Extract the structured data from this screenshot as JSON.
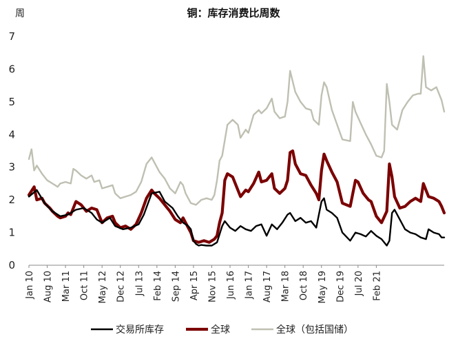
{
  "chart_data": {
    "type": "line",
    "title": "铜：库存消费比周数",
    "ylabel": "周",
    "xlabel": "",
    "ylim": [
      0,
      7
    ],
    "yticks": [
      0,
      1,
      2,
      3,
      4,
      5,
      6,
      7
    ],
    "x_start": "2010-01",
    "x_end": "2021-12",
    "categories": [
      "Jan 10",
      "Aug 10",
      "Mar 11",
      "Oct 11",
      "May 12",
      "Dec 12",
      "Jul 13",
      "Feb 14",
      "Sep 14",
      "Apr 15",
      "Nov 15",
      "Jun 16",
      "Jan 17",
      "Aug 17",
      "Mar 18",
      "Oct 18",
      "May 19",
      "Dec 19",
      "Jul 20",
      "Feb 21"
    ],
    "series": [
      {
        "name": "交易所库存",
        "color": "#000000",
        "points": [
          [
            0,
            2.1
          ],
          [
            3,
            2.3
          ],
          [
            6,
            1.9
          ],
          [
            9,
            1.65
          ],
          [
            12,
            1.5
          ],
          [
            15,
            1.55
          ],
          [
            18,
            1.7
          ],
          [
            21,
            1.75
          ],
          [
            24,
            1.6
          ],
          [
            26,
            1.4
          ],
          [
            28,
            1.3
          ],
          [
            31,
            1.45
          ],
          [
            33,
            1.2
          ],
          [
            36,
            1.1
          ],
          [
            39,
            1.15
          ],
          [
            42,
            1.25
          ],
          [
            44,
            1.55
          ],
          [
            47,
            2.2
          ],
          [
            50,
            2.25
          ],
          [
            52,
            1.95
          ],
          [
            55,
            1.75
          ],
          [
            57,
            1.5
          ],
          [
            59,
            1.3
          ],
          [
            61,
            1.2
          ],
          [
            62,
            1.1
          ],
          [
            63,
            0.75
          ],
          [
            64,
            0.65
          ],
          [
            65,
            0.6
          ],
          [
            66,
            0.62
          ],
          [
            68,
            0.6
          ],
          [
            70,
            0.6
          ],
          [
            72,
            0.7
          ],
          [
            74,
            1.2
          ],
          [
            75,
            1.35
          ],
          [
            77,
            1.15
          ],
          [
            79,
            1.05
          ],
          [
            81,
            1.2
          ],
          [
            83,
            1.1
          ],
          [
            85,
            1.05
          ],
          [
            87,
            1.2
          ],
          [
            89,
            1.25
          ],
          [
            91,
            0.9
          ],
          [
            93,
            1.25
          ],
          [
            95,
            1.1
          ],
          [
            97,
            1.3
          ],
          [
            99,
            1.55
          ],
          [
            100,
            1.6
          ],
          [
            102,
            1.35
          ],
          [
            104,
            1.45
          ],
          [
            106,
            1.3
          ],
          [
            108,
            1.35
          ],
          [
            110,
            1.15
          ],
          [
            112,
            1.95
          ],
          [
            113,
            2.05
          ],
          [
            114,
            1.7
          ],
          [
            116,
            1.6
          ],
          [
            118,
            1.45
          ],
          [
            120,
            1.0
          ],
          [
            123,
            0.75
          ],
          [
            125,
            1.0
          ],
          [
            127,
            0.95
          ],
          [
            129,
            0.88
          ],
          [
            131,
            1.05
          ],
          [
            133,
            0.9
          ],
          [
            135,
            0.8
          ],
          [
            137,
            0.6
          ],
          [
            138,
            0.75
          ],
          [
            139,
            1.6
          ],
          [
            140,
            1.7
          ],
          [
            142,
            1.4
          ],
          [
            144,
            1.1
          ],
          [
            146,
            1.0
          ],
          [
            148,
            0.95
          ],
          [
            150,
            0.85
          ],
          [
            152,
            0.8
          ],
          [
            153,
            1.1
          ],
          [
            155,
            1.0
          ],
          [
            157,
            0.95
          ],
          [
            158,
            0.85
          ],
          [
            159,
            0.85
          ]
        ]
      },
      {
        "name": "全球",
        "color": "#7B0000",
        "points": [
          [
            0,
            2.15
          ],
          [
            2,
            2.4
          ],
          [
            3,
            2.0
          ],
          [
            5,
            2.05
          ],
          [
            6,
            1.9
          ],
          [
            8,
            1.75
          ],
          [
            9,
            1.65
          ],
          [
            11,
            1.5
          ],
          [
            12,
            1.45
          ],
          [
            14,
            1.5
          ],
          [
            15,
            1.6
          ],
          [
            16,
            1.55
          ],
          [
            18,
            1.95
          ],
          [
            20,
            1.85
          ],
          [
            22,
            1.65
          ],
          [
            24,
            1.75
          ],
          [
            26,
            1.7
          ],
          [
            28,
            1.3
          ],
          [
            30,
            1.45
          ],
          [
            32,
            1.5
          ],
          [
            33,
            1.3
          ],
          [
            35,
            1.15
          ],
          [
            37,
            1.2
          ],
          [
            39,
            1.1
          ],
          [
            41,
            1.25
          ],
          [
            43,
            1.6
          ],
          [
            45,
            2.05
          ],
          [
            47,
            2.3
          ],
          [
            48,
            2.2
          ],
          [
            50,
            2.05
          ],
          [
            52,
            1.85
          ],
          [
            54,
            1.65
          ],
          [
            56,
            1.4
          ],
          [
            58,
            1.3
          ],
          [
            59,
            1.45
          ],
          [
            60,
            1.3
          ],
          [
            62,
            1.0
          ],
          [
            63,
            0.75
          ],
          [
            65,
            0.7
          ],
          [
            67,
            0.75
          ],
          [
            69,
            0.7
          ],
          [
            71,
            0.8
          ],
          [
            72,
            0.9
          ],
          [
            73,
            1.3
          ],
          [
            74,
            1.6
          ],
          [
            75,
            2.6
          ],
          [
            76,
            2.8
          ],
          [
            78,
            2.7
          ],
          [
            80,
            2.3
          ],
          [
            81,
            2.1
          ],
          [
            83,
            2.3
          ],
          [
            84,
            2.25
          ],
          [
            86,
            2.5
          ],
          [
            88,
            2.85
          ],
          [
            89,
            2.55
          ],
          [
            91,
            2.6
          ],
          [
            93,
            2.8
          ],
          [
            94,
            2.35
          ],
          [
            96,
            2.2
          ],
          [
            98,
            2.35
          ],
          [
            99,
            2.6
          ],
          [
            100,
            3.45
          ],
          [
            101,
            3.5
          ],
          [
            102,
            3.1
          ],
          [
            104,
            2.8
          ],
          [
            106,
            2.75
          ],
          [
            108,
            2.45
          ],
          [
            110,
            2.2
          ],
          [
            111,
            2.0
          ],
          [
            112,
            2.9
          ],
          [
            113,
            3.4
          ],
          [
            114,
            3.2
          ],
          [
            116,
            2.85
          ],
          [
            118,
            2.55
          ],
          [
            120,
            1.9
          ],
          [
            123,
            1.8
          ],
          [
            125,
            2.6
          ],
          [
            126,
            2.55
          ],
          [
            128,
            2.2
          ],
          [
            130,
            2.0
          ],
          [
            131,
            1.95
          ],
          [
            133,
            1.5
          ],
          [
            135,
            1.3
          ],
          [
            137,
            1.65
          ],
          [
            138,
            3.1
          ],
          [
            139,
            2.7
          ],
          [
            140,
            2.1
          ],
          [
            142,
            1.75
          ],
          [
            144,
            1.8
          ],
          [
            146,
            1.95
          ],
          [
            148,
            2.05
          ],
          [
            150,
            1.95
          ],
          [
            151,
            2.5
          ],
          [
            153,
            2.1
          ],
          [
            155,
            2.05
          ],
          [
            157,
            1.95
          ],
          [
            158,
            1.8
          ],
          [
            159,
            1.6
          ]
        ]
      },
      {
        "name": "全球（包括国储）",
        "color": "#BFBFB2",
        "points": [
          [
            0,
            3.25
          ],
          [
            1,
            3.55
          ],
          [
            2,
            2.9
          ],
          [
            3,
            3.05
          ],
          [
            5,
            2.8
          ],
          [
            7,
            2.6
          ],
          [
            9,
            2.5
          ],
          [
            11,
            2.4
          ],
          [
            12,
            2.5
          ],
          [
            14,
            2.55
          ],
          [
            16,
            2.5
          ],
          [
            17,
            2.95
          ],
          [
            18,
            2.9
          ],
          [
            20,
            2.75
          ],
          [
            22,
            2.65
          ],
          [
            24,
            2.75
          ],
          [
            25,
            2.55
          ],
          [
            27,
            2.6
          ],
          [
            28,
            2.35
          ],
          [
            30,
            2.4
          ],
          [
            32,
            2.45
          ],
          [
            33,
            2.2
          ],
          [
            35,
            2.05
          ],
          [
            37,
            2.1
          ],
          [
            39,
            2.15
          ],
          [
            41,
            2.25
          ],
          [
            43,
            2.55
          ],
          [
            45,
            3.1
          ],
          [
            47,
            3.3
          ],
          [
            48,
            3.15
          ],
          [
            50,
            2.85
          ],
          [
            52,
            2.65
          ],
          [
            54,
            2.35
          ],
          [
            56,
            2.2
          ],
          [
            58,
            2.55
          ],
          [
            59,
            2.45
          ],
          [
            60,
            2.2
          ],
          [
            62,
            1.9
          ],
          [
            64,
            1.85
          ],
          [
            66,
            2.0
          ],
          [
            68,
            2.05
          ],
          [
            70,
            2.0
          ],
          [
            71,
            2.15
          ],
          [
            72,
            2.6
          ],
          [
            73,
            3.2
          ],
          [
            74,
            3.35
          ],
          [
            76,
            4.3
          ],
          [
            78,
            4.45
          ],
          [
            80,
            4.3
          ],
          [
            81,
            3.9
          ],
          [
            83,
            4.15
          ],
          [
            84,
            4.05
          ],
          [
            86,
            4.6
          ],
          [
            88,
            4.75
          ],
          [
            89,
            4.65
          ],
          [
            91,
            4.8
          ],
          [
            93,
            5.1
          ],
          [
            94,
            4.7
          ],
          [
            96,
            4.5
          ],
          [
            98,
            4.55
          ],
          [
            99,
            5.0
          ],
          [
            100,
            5.95
          ],
          [
            102,
            5.3
          ],
          [
            104,
            5.0
          ],
          [
            106,
            4.8
          ],
          [
            108,
            4.75
          ],
          [
            109,
            4.45
          ],
          [
            111,
            4.3
          ],
          [
            112,
            5.2
          ],
          [
            113,
            5.6
          ],
          [
            114,
            5.45
          ],
          [
            116,
            4.75
          ],
          [
            118,
            4.3
          ],
          [
            120,
            3.85
          ],
          [
            123,
            3.8
          ],
          [
            124,
            5.0
          ],
          [
            125,
            4.7
          ],
          [
            127,
            4.35
          ],
          [
            129,
            4.0
          ],
          [
            131,
            3.7
          ],
          [
            133,
            3.35
          ],
          [
            135,
            3.3
          ],
          [
            136,
            3.5
          ],
          [
            137,
            5.55
          ],
          [
            138,
            5.0
          ],
          [
            139,
            4.3
          ],
          [
            141,
            4.15
          ],
          [
            143,
            4.75
          ],
          [
            145,
            5.0
          ],
          [
            147,
            5.2
          ],
          [
            149,
            5.25
          ],
          [
            150,
            5.25
          ],
          [
            151,
            6.4
          ],
          [
            152,
            5.45
          ],
          [
            154,
            5.35
          ],
          [
            156,
            5.45
          ],
          [
            158,
            5.05
          ],
          [
            159,
            4.7
          ]
        ]
      }
    ],
    "legend": [
      "交易所库存",
      "全球",
      "全球（包括国储）"
    ],
    "legend_position": "bottom"
  }
}
